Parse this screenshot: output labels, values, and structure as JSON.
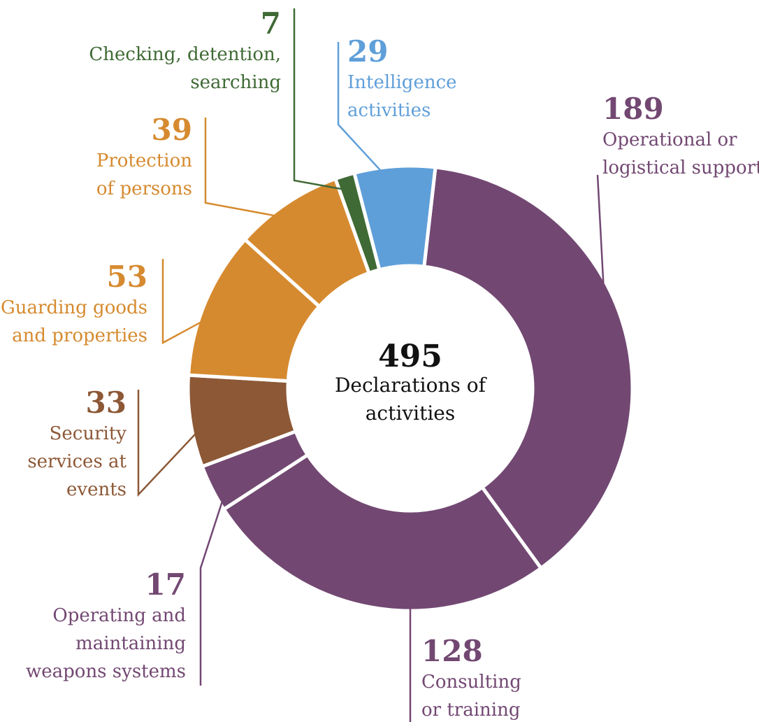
{
  "chart_data": {
    "type": "pie",
    "variant": "donut",
    "total": {
      "value": "495",
      "label_lines": [
        "Declarations of",
        "activities"
      ]
    },
    "slices": [
      {
        "key": "operational",
        "value": 189,
        "value_text": "189",
        "label_lines": [
          "Operational or",
          "logistical support"
        ],
        "color": "#724872"
      },
      {
        "key": "consulting",
        "value": 128,
        "value_text": "128",
        "label_lines": [
          "Consulting",
          "or training"
        ],
        "color": "#724872"
      },
      {
        "key": "weapons",
        "value": 17,
        "value_text": "17",
        "label_lines": [
          "Operating and",
          "maintaining",
          "weapons systems"
        ],
        "color": "#724872"
      },
      {
        "key": "events",
        "value": 33,
        "value_text": "33",
        "label_lines": [
          "Security",
          "services at",
          "events"
        ],
        "color": "#8c5836"
      },
      {
        "key": "guarding",
        "value": 53,
        "value_text": "53",
        "label_lines": [
          "Guarding goods",
          "and properties"
        ],
        "color": "#d68a2f"
      },
      {
        "key": "protection",
        "value": 39,
        "value_text": "39",
        "label_lines": [
          "Protection",
          "of persons"
        ],
        "color": "#d68a2f"
      },
      {
        "key": "checking",
        "value": 7,
        "value_text": "7",
        "label_lines": [
          "Checking, detention,",
          "searching"
        ],
        "color": "#3f6a35"
      },
      {
        "key": "intelligence",
        "value": 29,
        "value_text": "29",
        "label_lines": [
          "Intelligence",
          "activities"
        ],
        "color": "#5f9fd9"
      }
    ],
    "legend": "none",
    "grid": false
  }
}
